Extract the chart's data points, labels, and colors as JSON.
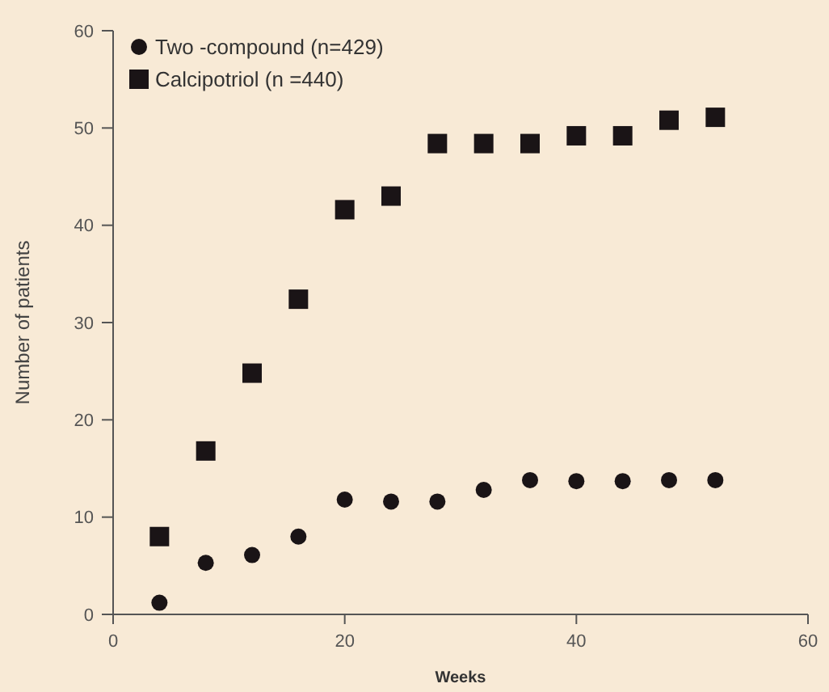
{
  "chart_data": {
    "type": "scatter",
    "xlabel": "Weeks",
    "ylabel": "Number of patients",
    "x": [
      4,
      8,
      12,
      16,
      20,
      24,
      28,
      32,
      36,
      40,
      44,
      48,
      52
    ],
    "series": [
      {
        "name": "Two -compound (n=429)",
        "color": "#1a1416",
        "marker": "circle",
        "values": [
          1.2,
          5.3,
          6.1,
          8,
          11.8,
          11.6,
          11.6,
          12.8,
          13.8,
          13.7,
          13.7,
          13.8,
          13.8
        ]
      },
      {
        "name": "Calcipotriol (n =440)",
        "color": "#1a1416",
        "marker": "square",
        "values": [
          8,
          16.8,
          24.8,
          32.4,
          41.6,
          43,
          48.4,
          48.4,
          48.4,
          49.2,
          49.2,
          50.8,
          51.1
        ]
      }
    ],
    "xlim": [
      0,
      60
    ],
    "xticks": [
      0,
      20,
      40,
      60
    ],
    "ylim": [
      0,
      60
    ],
    "yticks": [
      0,
      10,
      20,
      30,
      40,
      50,
      60
    ],
    "grid": false,
    "legend": "top left"
  }
}
